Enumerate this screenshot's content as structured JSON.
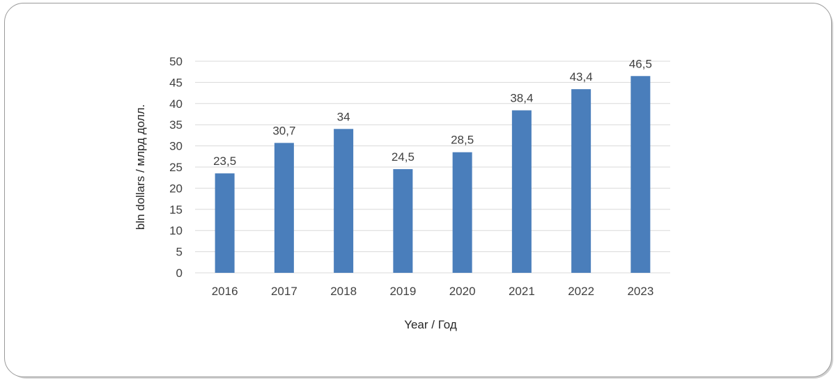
{
  "chart_data": {
    "type": "bar",
    "categories": [
      "2016",
      "2017",
      "2018",
      "2019",
      "2020",
      "2021",
      "2022",
      "2023"
    ],
    "values": [
      23.5,
      30.7,
      34,
      24.5,
      28.5,
      38.4,
      43.4,
      46.5
    ],
    "data_labels": [
      "23,5",
      "30,7",
      "34",
      "24,5",
      "28,5",
      "38,4",
      "43,4",
      "46,5"
    ],
    "xlabel": "Year / Год",
    "ylabel": "bln dollars / млрд долл.",
    "ylim": [
      0,
      50
    ],
    "yticks": [
      "0",
      "5",
      "10",
      "15",
      "20",
      "25",
      "30",
      "35",
      "40",
      "45",
      "50"
    ],
    "grid": true,
    "bar_color": "#4a7ebb",
    "grid_color": "#d9d9d9"
  }
}
